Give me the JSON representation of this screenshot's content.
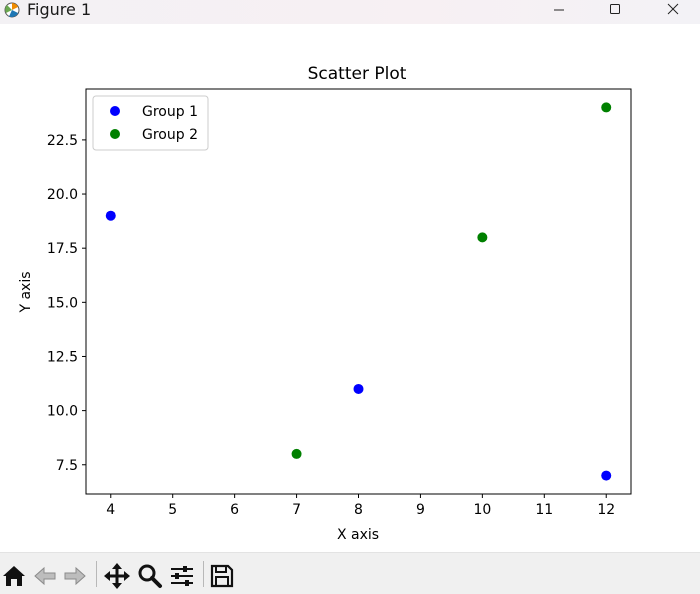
{
  "window": {
    "title": "Figure 1",
    "icons": {
      "app": "matplotlib-icon",
      "minimize": "minimize-icon",
      "maximize": "maximize-icon",
      "close": "close-icon"
    }
  },
  "chart_data": {
    "type": "scatter",
    "title": "Scatter Plot",
    "xlabel": "X axis",
    "ylabel": "Y axis",
    "xlim": [
      3.6,
      12.4
    ],
    "ylim": [
      6.15,
      24.85
    ],
    "xticks": [
      4,
      5,
      6,
      7,
      8,
      9,
      10,
      11,
      12
    ],
    "yticks": [
      7.5,
      10.0,
      12.5,
      15.0,
      17.5,
      20.0,
      22.5
    ],
    "grid": false,
    "legend_position": "top-left",
    "series": [
      {
        "name": "Group 1",
        "color": "#0000ff",
        "x": [
          4,
          8,
          12
        ],
        "y": [
          19,
          11,
          7
        ]
      },
      {
        "name": "Group 2",
        "color": "#008000",
        "x": [
          7,
          10,
          12
        ],
        "y": [
          8,
          18,
          24
        ]
      }
    ]
  },
  "toolbar": {
    "items": [
      "home-icon",
      "back-icon",
      "forward-icon",
      "pan-icon",
      "zoom-icon",
      "configure-subplots-icon",
      "save-icon"
    ]
  }
}
